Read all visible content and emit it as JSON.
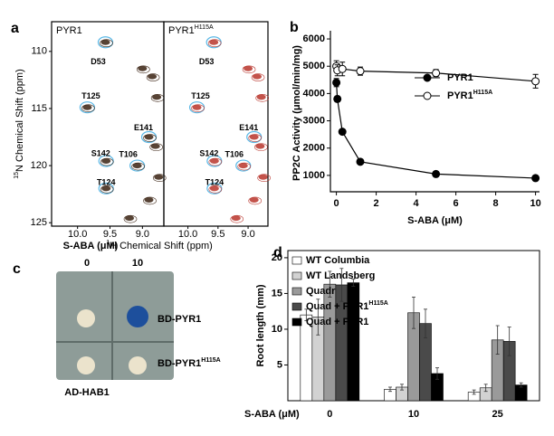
{
  "panel_labels": [
    "a",
    "b",
    "c",
    "d"
  ],
  "panel_c": {
    "title": "S-ABA (μM)",
    "columns": [
      "0",
      "10"
    ],
    "rows": [
      "BD-PYR1",
      "BD-PYR1"
    ],
    "row_superscripts": [
      null,
      "H115A"
    ],
    "footer": "AD-HAB1"
  },
  "chart_data": [
    {
      "type": "scatter",
      "title": "PYR1",
      "ylabel_superscript": "15",
      "ylabel": "N Chemical Shift (ppm)",
      "xlabel_superscript": "1",
      "xlabel": "H Chemical Shift (ppm)",
      "xlim": [
        10.4,
        8.67
      ],
      "ylim": [
        107.4,
        125.3
      ],
      "xticks": [
        {
          "value": 10,
          "label": "10.0"
        },
        9.5,
        {
          "value": 9,
          "label": "9.0"
        }
      ],
      "yticks": [
        110,
        115,
        120,
        125
      ],
      "color": "#3a2212",
      "ring_color": "#5bb8e6",
      "x": [
        9.57,
        9.85,
        9.56,
        9.08,
        8.9,
        9.56,
        9.0,
        8.85,
        8.8,
        8.75,
        8.9,
        9.2,
        8.78
      ],
      "values": [
        109.2,
        114.9,
        119.6,
        120.0,
        117.5,
        122.0,
        111.5,
        112.2,
        118.3,
        121.0,
        123.0,
        124.6,
        114.0
      ],
      "point_labels": [
        "D53",
        "T125",
        "S142",
        "T106",
        "E141",
        "T124",
        null,
        null,
        null,
        null,
        null,
        null,
        null
      ]
    },
    {
      "type": "scatter",
      "title": "PYR1",
      "title_superscript": "H115A",
      "xlim": [
        10.4,
        8.67
      ],
      "ylim": [
        107.4,
        125.3
      ],
      "xticks": [
        {
          "value": 10,
          "label": "10.0"
        },
        9.5,
        {
          "value": 9,
          "label": "9.0"
        }
      ],
      "color": "#b8352c",
      "ring_color": "#5bb8e6",
      "x": [
        9.57,
        9.85,
        9.56,
        9.08,
        8.9,
        9.56,
        9.0,
        8.85,
        8.8,
        8.75,
        8.9,
        9.2,
        8.78
      ],
      "values": [
        109.2,
        114.9,
        119.6,
        120.0,
        117.5,
        122.0,
        111.5,
        112.2,
        118.3,
        121.0,
        123.0,
        124.6,
        114.0
      ],
      "point_labels": [
        "D53",
        "T125",
        "S142",
        "T106",
        "E141",
        "T124",
        null,
        null,
        null,
        null,
        null,
        null,
        null
      ]
    },
    {
      "type": "line",
      "xlabel": "S-ABA (μM)",
      "ylabel": "PP2C Activity (μmol/min/mg)",
      "xlim": [
        -0.3,
        10.2
      ],
      "ylim": [
        400,
        6300
      ],
      "xticks": [
        0,
        2,
        4,
        6,
        8,
        10
      ],
      "yticks": [
        1000,
        2000,
        3000,
        4000,
        5000,
        6000
      ],
      "series": [
        {
          "name": "PYR1",
          "color": "#000000",
          "marker": "filled",
          "x": [
            0,
            0.05,
            0.3,
            1.2,
            5,
            10
          ],
          "values": [
            4400,
            3800,
            2600,
            1500,
            1050,
            900
          ],
          "errors": [
            150,
            100,
            80,
            60,
            60,
            80
          ]
        },
        {
          "name": "PYR1",
          "name_superscript": "H115A",
          "color": "#000000",
          "marker": "open",
          "x": [
            0,
            0.05,
            0.3,
            1.2,
            5,
            10
          ],
          "values": [
            5000,
            4850,
            4900,
            4820,
            4750,
            4450
          ],
          "errors": [
            200,
            200,
            250,
            150,
            130,
            250
          ]
        }
      ]
    },
    {
      "type": "bar",
      "xlabel": "S-ABA (μM)",
      "ylabel": "Root length (mm)",
      "categories": [
        "0",
        "10",
        "25"
      ],
      "ylim": [
        0,
        21
      ],
      "yticks": [
        5,
        10,
        15,
        20
      ],
      "series": [
        {
          "name": "WT Columbia",
          "color": "#ffffff",
          "values": [
            12,
            1.6,
            1.2
          ],
          "errors": [
            0.8,
            0.3,
            0.3
          ]
        },
        {
          "name": "WT Landsberg",
          "color": "#d2d2d2",
          "values": [
            11.7,
            1.9,
            1.8
          ],
          "errors": [
            2.5,
            0.4,
            0.5
          ]
        },
        {
          "name": "Quadruple",
          "color": "#9a9a9a",
          "values": [
            16.3,
            12.3,
            8.5
          ],
          "errors": [
            1.8,
            2.2,
            2.0
          ]
        },
        {
          "name": "Quad + PYR1",
          "name_superscript": "H115A",
          "color": "#4a4a4a",
          "values": [
            16.2,
            10.8,
            8.3
          ],
          "errors": [
            2.3,
            2.0,
            2.0
          ]
        },
        {
          "name": "Quad + PYR1",
          "color": "#000000",
          "values": [
            16.5,
            3.8,
            2.2
          ],
          "errors": [
            0.5,
            0.8,
            0.3
          ]
        }
      ]
    }
  ]
}
